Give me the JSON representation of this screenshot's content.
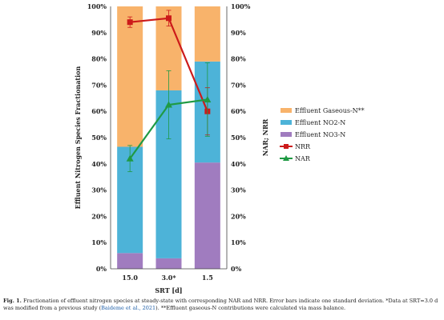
{
  "chart_data": {
    "type": "bar",
    "stacked": true,
    "categories": [
      "15.0",
      "3.0*",
      "1.5"
    ],
    "xlabel": "SRT [d]",
    "ylabel_left": "Effluent Nitrogen Species Fractionation",
    "ylabel_right": "NAR; NRR",
    "ylim": [
      0,
      100
    ],
    "yticks": [
      "0%",
      "10%",
      "20%",
      "30%",
      "40%",
      "50%",
      "60%",
      "70%",
      "80%",
      "90%",
      "100%"
    ],
    "bar_series": [
      {
        "name": "Effluent NO3-N",
        "color": "#a07cbf",
        "values": [
          6,
          4,
          40.5
        ]
      },
      {
        "name": "Effluent NO2-N",
        "color": "#4db3d8",
        "values": [
          40.5,
          64,
          38.5
        ]
      },
      {
        "name": "Effluent Gaseous-N**",
        "color": "#f8b36b",
        "values": [
          53.5,
          32,
          21
        ]
      }
    ],
    "line_series": [
      {
        "name": "NRR",
        "color": "#cc1a1a",
        "marker": "square",
        "values": [
          94,
          95.5,
          60
        ],
        "err": [
          2,
          3,
          9
        ]
      },
      {
        "name": "NAR",
        "color": "#1f9a44",
        "marker": "triangle",
        "values": [
          42,
          62.5,
          64.5
        ],
        "err": [
          5,
          13,
          14
        ]
      }
    ],
    "legend": [
      "Effluent Gaseous-N**",
      "Effluent NO2-N",
      "Effluent NO3-N",
      "NRR",
      "NAR"
    ],
    "legend_position": "right",
    "grid": false
  },
  "caption": {
    "label": "Fig. 1.",
    "text_before_cite": "Fractionation of effluent nitrogen species at steady-state with corresponding NAR and NRR. Error bars indicate one standard deviation. *Data at SRT=3.0 d was modified from a previous study (",
    "cite": "Baideme et al., 2021",
    "text_after_cite": "). **Effluent gaseous-N contributions were calculated via mass balance."
  }
}
